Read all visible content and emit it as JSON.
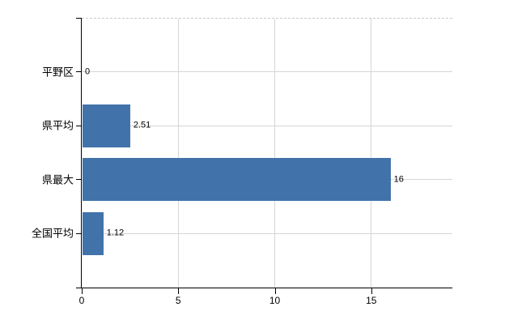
{
  "chart_data": {
    "type": "bar",
    "orientation": "horizontal",
    "title": "",
    "xlabel": "",
    "ylabel": "",
    "categories": [
      "平野区",
      "県平均",
      "県最大",
      "全国平均"
    ],
    "values": [
      0,
      2.51,
      16,
      1.12
    ],
    "value_labels": [
      "0",
      "2.51",
      "16",
      "1.12"
    ],
    "x_ticks": [
      0,
      5,
      10,
      15
    ],
    "x_tick_labels": [
      "0",
      "5",
      "10",
      "15"
    ],
    "xlim": [
      0,
      19.2
    ],
    "grid": true,
    "legend": false,
    "colors": {
      "bar": "#4173aa",
      "grid_line": "#d6d6d6",
      "top_border": "#c9c9c9",
      "axis": "#000000",
      "text": "#000000",
      "background": "#ffffff"
    }
  }
}
